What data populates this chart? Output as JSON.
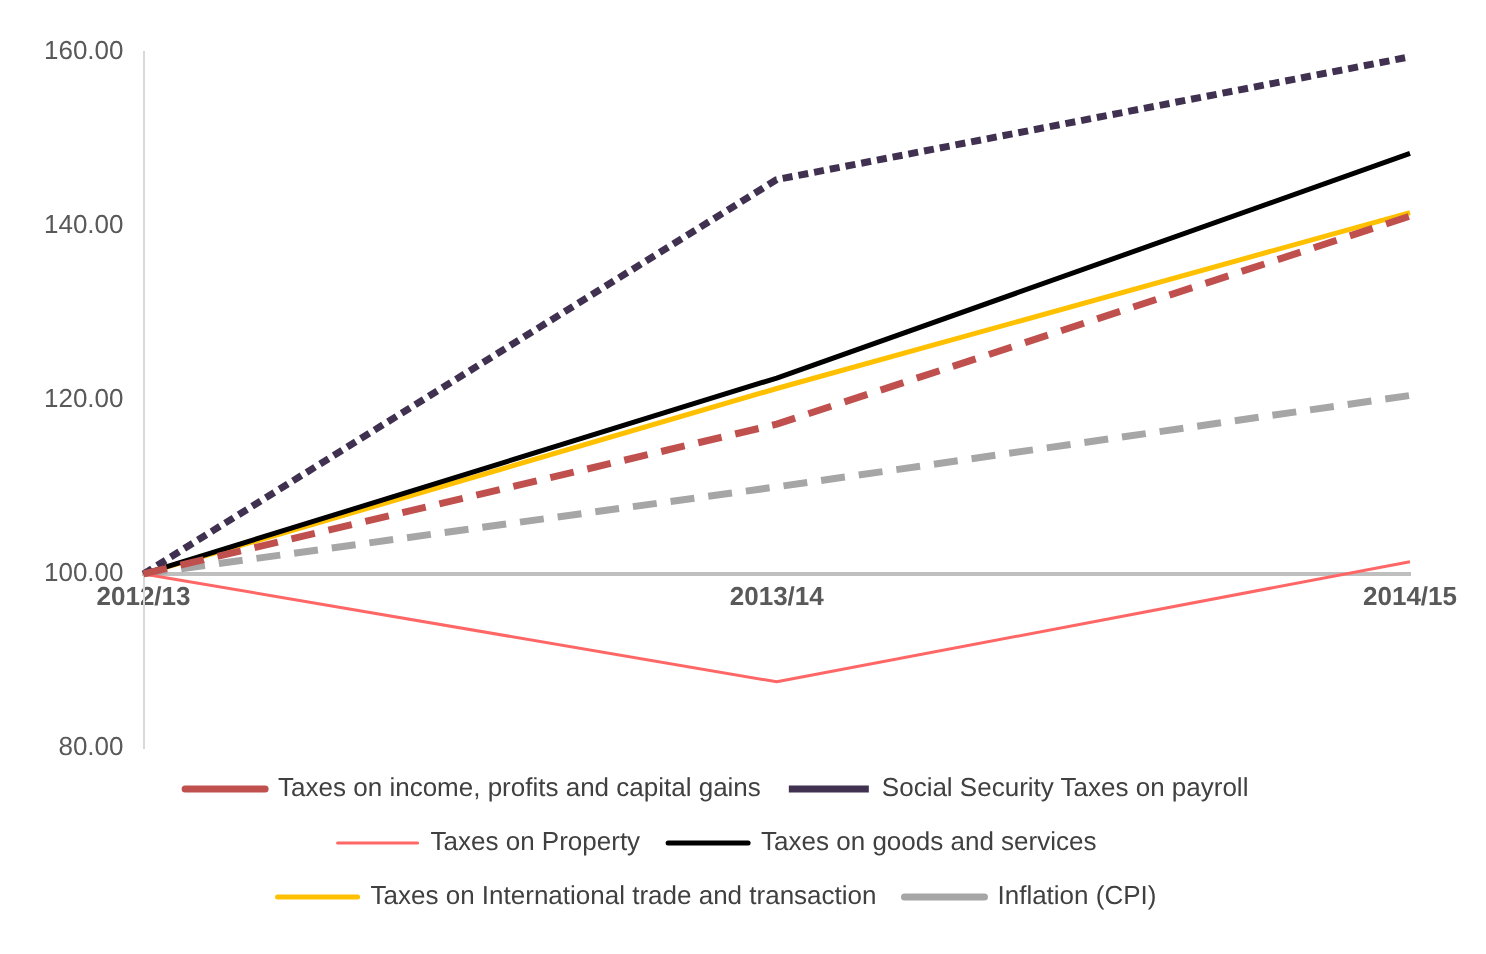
{
  "chart_data": {
    "type": "line",
    "categories": [
      "2012/13",
      "2013/14",
      "2014/15"
    ],
    "series": [
      {
        "name": "Taxes on income, profits and capital gains",
        "color": "#c0504d",
        "line_style": "dashed",
        "values": [
          100,
          117.2,
          141.1
        ]
      },
      {
        "name": "Social Security Taxes on payroll",
        "color": "#403151",
        "line_style": "dotted",
        "values": [
          100,
          145.3,
          159.4
        ]
      },
      {
        "name": "Taxes on Property",
        "color": "#ff6666",
        "line_style": "solid",
        "values": [
          100,
          87.6,
          101.4
        ]
      },
      {
        "name": "Taxes on goods and services",
        "color": "#000000",
        "line_style": "solid",
        "values": [
          100,
          122.5,
          148.3
        ]
      },
      {
        "name": "Taxes on International trade and transaction",
        "color": "#ffc000",
        "line_style": "solid",
        "values": [
          100,
          121.3,
          141.5
        ]
      },
      {
        "name": "Inflation (CPI)",
        "color": "#a6a6a6",
        "line_style": "dashed",
        "values": [
          100,
          110,
          120.5
        ]
      }
    ],
    "ylim": [
      80,
      160
    ],
    "yticks": [
      {
        "value": 80,
        "label": "80.00"
      },
      {
        "value": 100,
        "label": "100.00"
      },
      {
        "value": 120,
        "label": "120.00"
      },
      {
        "value": 140,
        "label": "140.00"
      },
      {
        "value": 160,
        "label": "160.00"
      }
    ],
    "grid": false,
    "marker": "none",
    "legend": "bottom"
  }
}
